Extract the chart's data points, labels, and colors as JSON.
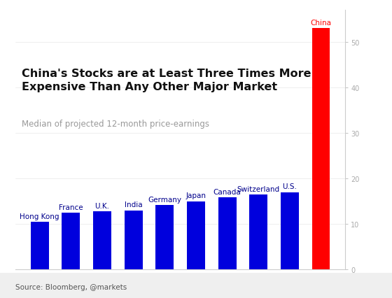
{
  "categories": [
    "Hong Kong",
    "France",
    "U.K.",
    "India",
    "Germany",
    "Japan",
    "Canada",
    "Switzerland",
    "U.S.",
    "China"
  ],
  "values": [
    10.5,
    12.5,
    12.8,
    13.0,
    14.2,
    15.0,
    15.8,
    16.5,
    17.0,
    53.0
  ],
  "bar_colors": [
    "#0000dd",
    "#0000dd",
    "#0000dd",
    "#0000dd",
    "#0000dd",
    "#0000dd",
    "#0000dd",
    "#0000dd",
    "#0000dd",
    "#ff0000"
  ],
  "title_line1": "China's Stocks are at Least Three Times More",
  "title_line2": "Expensive Than Any Other Major Market",
  "subtitle": "Median of projected 12-month price-earnings",
  "source": "Source: Bloomberg, @markets",
  "china_label_color": "#ff0000",
  "blue_label_color": "#00008b",
  "ylim": [
    0,
    57
  ],
  "yticks": [
    0,
    10,
    20,
    30,
    40,
    50
  ],
  "background_color": "#ffffff",
  "footer_color": "#efefef",
  "bar_width": 0.58,
  "title_fontsize": 11.5,
  "subtitle_fontsize": 8.5,
  "label_fontsize": 7.5,
  "source_fontsize": 7.5,
  "tick_color": "#aaaaaa",
  "tick_label_size": 7
}
